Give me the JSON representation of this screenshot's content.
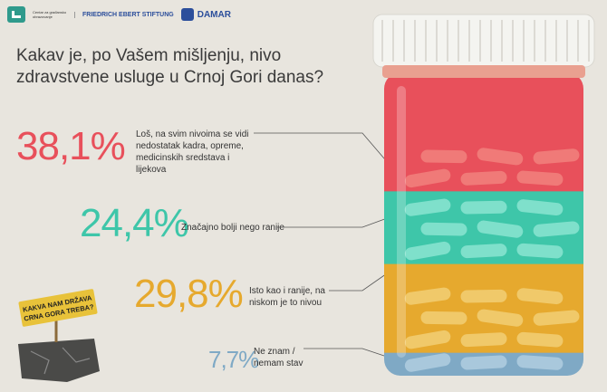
{
  "logos": {
    "org_small": "Centar za građansko obrazovanje",
    "fes": "FRIEDRICH EBERT STIFTUNG",
    "damar": "DAMAR"
  },
  "question": "Kakav je, po Vašem mišljenju, nivo zdravstvene usluge u Crnoj Gori danas?",
  "colors": {
    "red": "#e8505b",
    "teal": "#3ec6a9",
    "yellow": "#e6a92e",
    "blue": "#7fa9c5",
    "cap": "#f4f4f0",
    "background": "#e8e5de"
  },
  "chart_data": {
    "type": "bar",
    "categories": [
      "Loš, na svim nivoima se vidi nedostatak kadra, opreme, medicinskih sredstava i lijekova",
      "Značajno bolji nego ranije",
      "Isto kao i ranije, na niskom je to nivou",
      "Ne znam / nemam stav"
    ],
    "values": [
      38.1,
      24.4,
      29.8,
      7.7
    ],
    "value_labels": [
      "38,1%",
      "24,4%",
      "29,8%",
      "7,7%"
    ],
    "title": "Kakav je, po Vašem mišljenju, nivo zdravstvene usluge u Crnoj Gori danas?",
    "xlabel": "",
    "ylabel": "",
    "ylim": [
      0,
      100
    ],
    "grid": false,
    "legend": "none"
  },
  "items": [
    {
      "pct": "38,1%",
      "lines": [
        "Loš, na svim nivoima se vidi",
        "nedostatak kadra, opreme,",
        "medicinskih sredstava i lijekova"
      ]
    },
    {
      "pct": "24,4%",
      "lines": [
        "Značajno bolji nego ranije"
      ]
    },
    {
      "pct": "29,8%",
      "lines": [
        "Isto kao i ranije, na",
        "niskom je to nivou"
      ]
    },
    {
      "pct": "7,7%",
      "lines": [
        "Ne znam /",
        "nemam stav"
      ]
    }
  ],
  "sticker": {
    "line1": "KAKVA NAM DRŽAVA",
    "line2": "CRNA GORA TREBA?"
  }
}
